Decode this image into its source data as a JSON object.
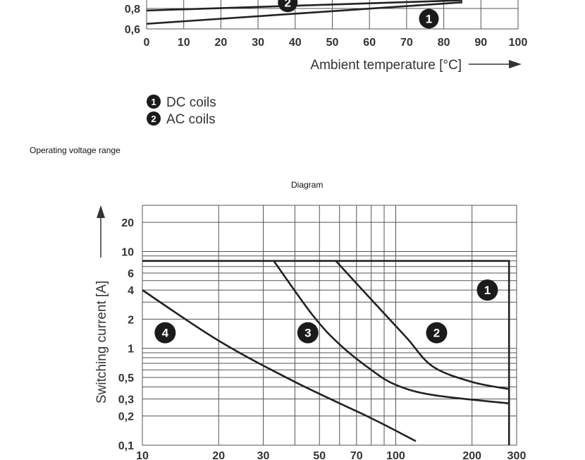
{
  "captions": {
    "operating_voltage_range": "Operating voltage range",
    "diagram": "Diagram"
  },
  "chart_data": [
    {
      "type": "line",
      "xlabel": "Ambient temperature [°C]",
      "ylabel": "",
      "x_ticks": [
        "0",
        "10",
        "20",
        "30",
        "40",
        "50",
        "60",
        "70",
        "80",
        "90",
        "100"
      ],
      "y_ticks": [
        "0,8",
        "0,6"
      ],
      "xlim": [
        0,
        100
      ],
      "legend": [
        {
          "marker": "1",
          "label": "DC coils"
        },
        {
          "marker": "2",
          "label": "AC coils"
        }
      ],
      "series": [
        {
          "name": "1",
          "x": [
            0,
            85
          ],
          "y": [
            0.65,
            0.86
          ]
        },
        {
          "name": "2",
          "x": [
            0,
            85
          ],
          "y": [
            0.78,
            0.88
          ]
        }
      ],
      "series_markers": [
        {
          "label": "1",
          "x": 76,
          "y": 0.7
        },
        {
          "label": "2",
          "x": 38,
          "y": 0.86
        }
      ]
    },
    {
      "type": "line",
      "xscale": "log",
      "yscale": "log",
      "ylabel": "Switching current [A]",
      "xlim": [
        10,
        300
      ],
      "ylim": [
        0.1,
        30
      ],
      "x_ticks": [
        "10",
        "20",
        "30",
        "50",
        "70",
        "100",
        "200",
        "300"
      ],
      "y_ticks": [
        "20",
        "10",
        "6",
        "4",
        "2",
        "1",
        "0,5",
        "0,3",
        "0,2",
        "0,1"
      ],
      "series": [
        {
          "name": "1",
          "x": [
            10,
            280,
            280
          ],
          "y": [
            8,
            8,
            0.1
          ]
        },
        {
          "name": "2",
          "x": [
            58,
            80,
            110,
            140,
            200,
            280
          ],
          "y": [
            8,
            3.2,
            1.3,
            0.65,
            0.45,
            0.38
          ]
        },
        {
          "name": "3",
          "x": [
            33,
            47,
            60,
            80,
            100,
            140,
            280
          ],
          "y": [
            8,
            2.2,
            1.1,
            0.6,
            0.42,
            0.33,
            0.27
          ]
        },
        {
          "name": "4",
          "x": [
            10,
            20,
            40,
            80,
            120
          ],
          "y": [
            4,
            1.2,
            0.45,
            0.19,
            0.11
          ]
        }
      ],
      "series_markers": [
        {
          "label": "1",
          "x": 230,
          "y": 4
        },
        {
          "label": "2",
          "x": 145,
          "y": 1.45
        },
        {
          "label": "3",
          "x": 45,
          "y": 1.45
        },
        {
          "label": "4",
          "x": 12.3,
          "y": 1.45
        }
      ]
    }
  ]
}
